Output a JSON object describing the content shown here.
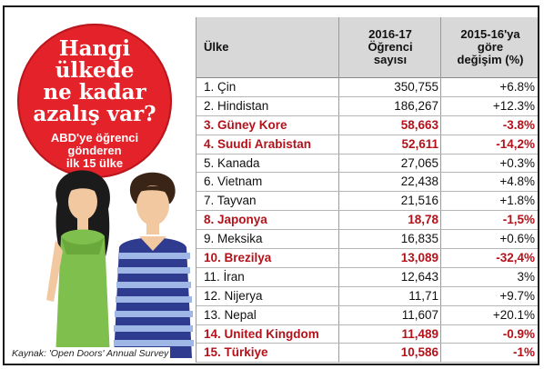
{
  "bubble": {
    "title": "Hangi\nülkede\nne kadar\nazalış var?",
    "subtitle": "ABD'ye öğrenci\ngönderen\nilk 15 ülke"
  },
  "source": "Kaynak: 'Open Doors' Annual Survey",
  "table": {
    "headers": {
      "country": "Ülke",
      "count": "2016-17\nÖğrenci\nsayısı",
      "change": "2015-16'ya\ngöre\ndeğişim (%)"
    },
    "rows": [
      {
        "country": "1. Çin",
        "count": "350,755",
        "change": "+6.8%",
        "highlight": false
      },
      {
        "country": "2. Hindistan",
        "count": "186,267",
        "change": "+12.3%",
        "highlight": false
      },
      {
        "country": "3. Güney Kore",
        "count": "58,663",
        "change": "-3.8%",
        "highlight": true
      },
      {
        "country": "4. Suudi Arabistan",
        "count": "52,611",
        "change": "-14,2%",
        "highlight": true
      },
      {
        "country": "5. Kanada",
        "count": "27,065",
        "change": "+0.3%",
        "highlight": false
      },
      {
        "country": "6. Vietnam",
        "count": "22,438",
        "change": "+4.8%",
        "highlight": false
      },
      {
        "country": "7. Tayvan",
        "count": "21,516",
        "change": "+1.8%",
        "highlight": false
      },
      {
        "country": "8. Japonya",
        "count": "18,78",
        "change": "-1,5%",
        "highlight": true
      },
      {
        "country": "9. Meksika",
        "count": "16,835",
        "change": "+0.6%",
        "highlight": false
      },
      {
        "country": "10. Brezilya",
        "count": "13,089",
        "change": "-32,4%",
        "highlight": true
      },
      {
        "country": "11. İran",
        "count": "12,643",
        "change": "3%",
        "highlight": false
      },
      {
        "country": "12. Nijerya",
        "count": "11,71",
        "change": "+9.7%",
        "highlight": false
      },
      {
        "country": "13. Nepal",
        "count": "11,607",
        "change": "+20.1%",
        "highlight": false
      },
      {
        "country": "14. United Kingdom",
        "count": "11,489",
        "change": "-0.9%",
        "highlight": true
      },
      {
        "country": "15. Türkiye",
        "count": "10,586",
        "change": "-1%",
        "highlight": true
      }
    ]
  },
  "colors": {
    "bubble": "#e3222a",
    "highlight_text": "#b4121b",
    "header_bg": "#d8d8d8"
  }
}
